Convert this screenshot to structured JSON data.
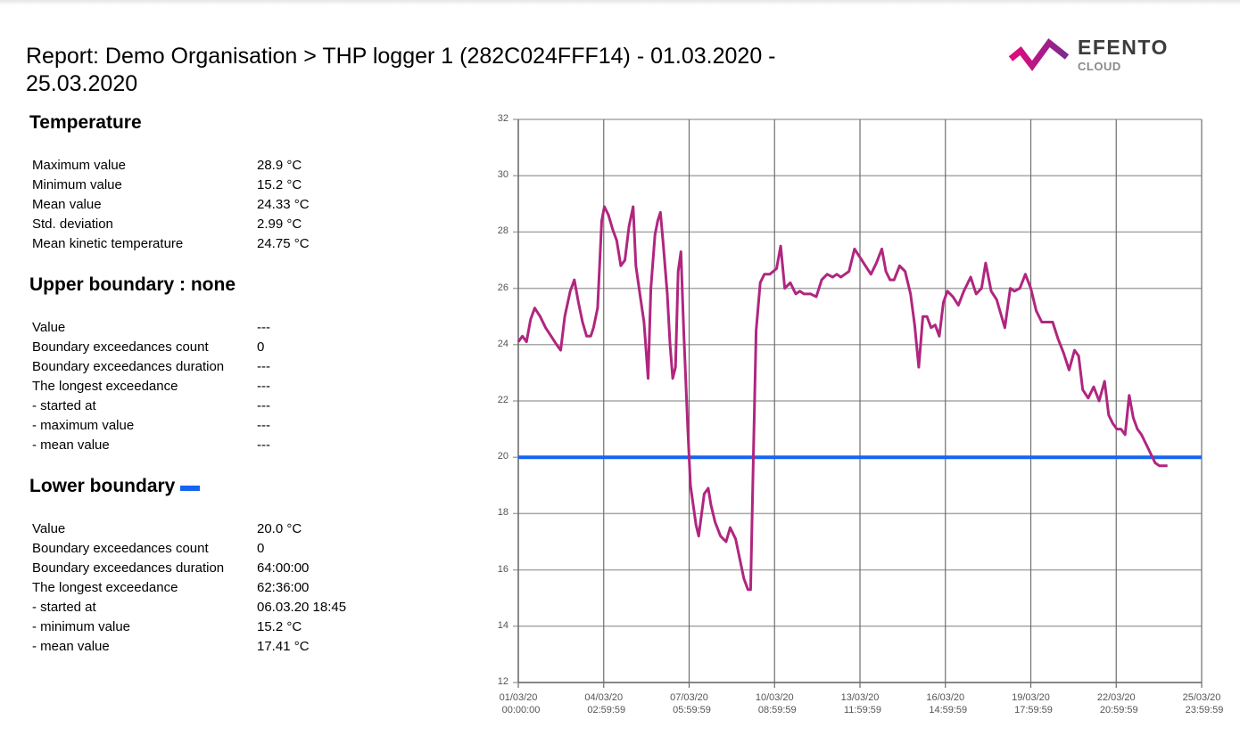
{
  "report": {
    "title": "Report: Demo Organisation > THP logger 1 (282C024FFF14) - 01.03.2020 - 25.03.2020"
  },
  "logo": {
    "name": "EFENTO",
    "sub": "CLOUD",
    "gradient_start": "#e4087e",
    "gradient_end": "#7b2b8f"
  },
  "temperature": {
    "heading": "Temperature",
    "rows": [
      {
        "label": "Maximum value",
        "value": "28.9 °C"
      },
      {
        "label": "Minimum value",
        "value": "15.2 °C"
      },
      {
        "label": "Mean value",
        "value": "24.33 °C"
      },
      {
        "label": "Std. deviation",
        "value": "2.99 °C"
      },
      {
        "label": "Mean kinetic temperature",
        "value": "24.75 °C"
      }
    ]
  },
  "upper_boundary": {
    "heading": "Upper boundary : none",
    "rows": [
      {
        "label": "Value",
        "value": "---"
      },
      {
        "label": "Boundary exceedances count",
        "value": "0"
      },
      {
        "label": "Boundary exceedances duration",
        "value": "---"
      },
      {
        "label": "The longest exceedance",
        "value": "---"
      },
      {
        "label": "- started at",
        "value": "---"
      },
      {
        "label": "- maximum value",
        "value": "---"
      },
      {
        "label": "- mean value",
        "value": "---"
      }
    ]
  },
  "lower_boundary": {
    "heading": "Lower boundary",
    "color": "#1565f0",
    "rows": [
      {
        "label": "Value",
        "value": "20.0 °C"
      },
      {
        "label": "Boundary exceedances count",
        "value": "0"
      },
      {
        "label": "Boundary exceedances duration",
        "value": "64:00:00"
      },
      {
        "label": "The longest exceedance",
        "value": "62:36:00"
      },
      {
        "label": "- started at",
        "value": "06.03.20 18:45"
      },
      {
        "label": "- minimum value",
        "value": "15.2 °C"
      },
      {
        "label": "- mean value",
        "value": "17.41 °C"
      }
    ]
  },
  "chart_data": {
    "type": "line",
    "title": "",
    "xlabel": "",
    "ylabel": "",
    "ylim": [
      12,
      32
    ],
    "yticks": [
      "32",
      "30",
      "28",
      "26",
      "24",
      "22",
      "20",
      "18",
      "16",
      "14",
      "12"
    ],
    "xticks": [
      {
        "date": "01/03/20",
        "time": "00:00:00"
      },
      {
        "date": "04/03/20",
        "time": "02:59:59"
      },
      {
        "date": "07/03/20",
        "time": "05:59:59"
      },
      {
        "date": "10/03/20",
        "time": "08:59:59"
      },
      {
        "date": "13/03/20",
        "time": "11:59:59"
      },
      {
        "date": "16/03/20",
        "time": "14:59:59"
      },
      {
        "date": "19/03/20",
        "time": "17:59:59"
      },
      {
        "date": "22/03/20",
        "time": "20:59:59"
      },
      {
        "date": "25/03/20",
        "time": "23:59:59"
      }
    ],
    "grid": true,
    "series": [
      {
        "name": "Temperature",
        "color": "#b0267f",
        "x_days": [
          0,
          0.15,
          0.3,
          0.45,
          0.6,
          0.8,
          1.0,
          1.2,
          1.4,
          1.55,
          1.7,
          1.9,
          2.05,
          2.2,
          2.35,
          2.5,
          2.65,
          2.75,
          2.9,
          3.05,
          3.15,
          3.3,
          3.45,
          3.6,
          3.75,
          3.9,
          4.05,
          4.2,
          4.3,
          4.45,
          4.6,
          4.75,
          4.85,
          5.0,
          5.1,
          5.2,
          5.3,
          5.45,
          5.55,
          5.65,
          5.75,
          5.85,
          5.95,
          6.05,
          6.2,
          6.3,
          6.4,
          6.5,
          6.6,
          6.8,
          6.95,
          7.05,
          7.2,
          7.4,
          7.6,
          7.75,
          7.95,
          8.1,
          8.25,
          8.4,
          8.5,
          8.6,
          8.7,
          8.85,
          9.0,
          9.2,
          9.45,
          9.6,
          9.75,
          9.95,
          10.15,
          10.3,
          10.45,
          10.7,
          10.9,
          11.1,
          11.3,
          11.5,
          11.65,
          11.8,
          11.95,
          12.1,
          12.3,
          12.5,
          12.7,
          12.9,
          13.1,
          13.3,
          13.45,
          13.6,
          13.75,
          13.95,
          14.15,
          14.35,
          14.5,
          14.65,
          14.8,
          14.95,
          15.1,
          15.25,
          15.4,
          15.55,
          15.7,
          15.9,
          16.1,
          16.3,
          16.55,
          16.75,
          16.95,
          17.1,
          17.3,
          17.5,
          17.65,
          17.8,
          18.0,
          18.15,
          18.35,
          18.55,
          18.75,
          18.95,
          19.15,
          19.35,
          19.55,
          19.75,
          19.95,
          20.15,
          20.35,
          20.5,
          20.65,
          20.85,
          21.05,
          21.25,
          21.45,
          21.6,
          21.75,
          21.9,
          22.05,
          22.2,
          22.35,
          22.5,
          22.65,
          22.8,
          22.95,
          23.1,
          23.3,
          23.45,
          23.6,
          23.75,
          23.9,
          24.0
        ],
        "values": [
          24.1,
          24.3,
          24.1,
          24.9,
          25.3,
          25.0,
          24.6,
          24.3,
          24.0,
          23.8,
          25.0,
          25.9,
          26.3,
          25.5,
          24.8,
          24.3,
          24.3,
          24.6,
          25.3,
          28.4,
          28.9,
          28.6,
          28.1,
          27.7,
          26.8,
          27.0,
          28.2,
          28.9,
          26.8,
          25.8,
          24.8,
          22.8,
          26.0,
          27.9,
          28.4,
          28.7,
          27.6,
          25.8,
          24.0,
          22.8,
          23.2,
          26.6,
          27.3,
          24.5,
          21.0,
          19.0,
          18.3,
          17.6,
          17.2,
          18.7,
          18.9,
          18.3,
          17.7,
          17.2,
          17.0,
          17.5,
          17.1,
          16.4,
          15.7,
          15.3,
          15.3,
          20.0,
          24.5,
          26.2,
          26.5,
          26.5,
          26.7,
          27.5,
          26.0,
          26.2,
          25.8,
          25.9,
          25.8,
          25.8,
          25.7,
          26.3,
          26.5,
          26.4,
          26.5,
          26.4,
          26.5,
          26.6,
          27.4,
          27.1,
          26.8,
          26.5,
          26.9,
          27.4,
          26.6,
          26.3,
          26.3,
          26.8,
          26.6,
          25.8,
          24.7,
          23.2,
          25.0,
          25.0,
          24.6,
          24.7,
          24.3,
          25.5,
          25.9,
          25.7,
          25.4,
          25.9,
          26.4,
          25.8,
          26.0,
          26.9,
          25.9,
          25.6,
          25.1,
          24.6,
          26.0,
          25.9,
          26.0,
          26.5,
          26.0,
          25.2,
          24.8,
          24.8,
          24.8,
          24.2,
          23.7,
          23.1,
          23.8,
          23.6,
          22.4,
          22.1,
          22.5,
          22.0,
          22.7,
          21.5,
          21.2,
          21.0,
          21.0,
          20.8,
          22.2,
          21.4,
          21.0,
          20.8,
          20.5,
          20.2,
          19.8,
          19.7,
          19.7,
          19.7
        ],
        "note": "values approximated from plot"
      },
      {
        "name": "Lower boundary",
        "color": "#1565f0",
        "constant": 20.0
      }
    ]
  }
}
